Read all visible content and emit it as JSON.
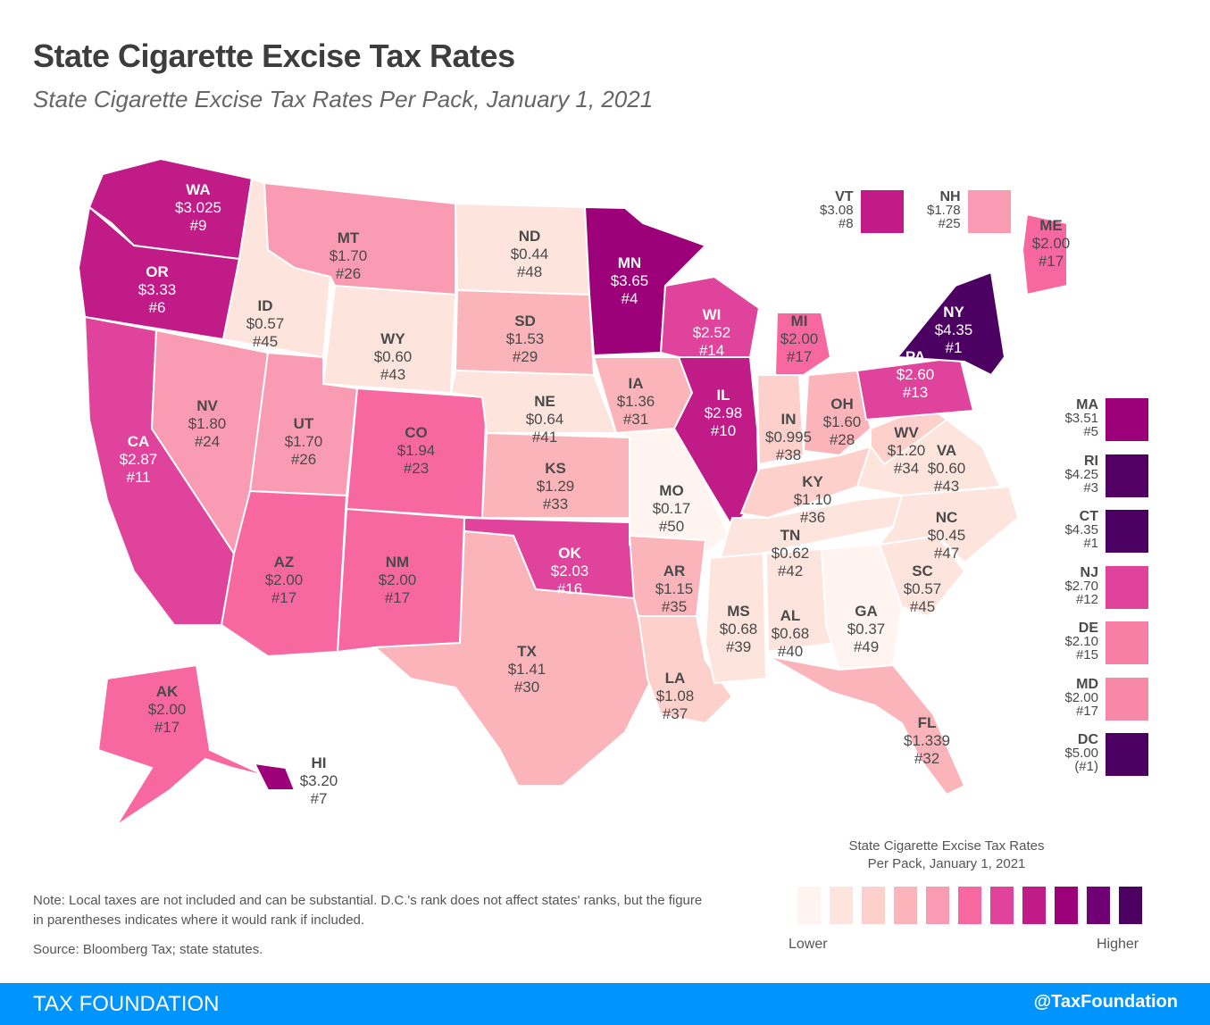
{
  "header": {
    "title": "State Cigarette Excise Tax Rates",
    "subtitle": "State Cigarette Excise Tax Rates Per Pack, January 1, 2021"
  },
  "palette": [
    "#fff4f0",
    "#fde4dd",
    "#fdd0cb",
    "#fbb4b9",
    "#f99bb2",
    "#f768a1",
    "#e0439b",
    "#c11b87",
    "#9c017a",
    "#700174",
    "#4b0062"
  ],
  "states": [
    {
      "abbr": "WA",
      "rate": "$3.025",
      "rank": "#9",
      "bin": 7
    },
    {
      "abbr": "OR",
      "rate": "$3.33",
      "rank": "#6",
      "bin": 7
    },
    {
      "abbr": "CA",
      "rate": "$2.87",
      "rank": "#11",
      "bin": 6
    },
    {
      "abbr": "ID",
      "rate": "$0.57",
      "rank": "#45",
      "bin": 1
    },
    {
      "abbr": "NV",
      "rate": "$1.80",
      "rank": "#24",
      "bin": 4
    },
    {
      "abbr": "MT",
      "rate": "$1.70",
      "rank": "#26",
      "bin": 4
    },
    {
      "abbr": "WY",
      "rate": "$0.60",
      "rank": "#43",
      "bin": 1
    },
    {
      "abbr": "UT",
      "rate": "$1.70",
      "rank": "#26",
      "bin": 4
    },
    {
      "abbr": "AZ",
      "rate": "$2.00",
      "rank": "#17",
      "bin": 5
    },
    {
      "abbr": "CO",
      "rate": "$1.94",
      "rank": "#23",
      "bin": 5
    },
    {
      "abbr": "NM",
      "rate": "$2.00",
      "rank": "#17",
      "bin": 5
    },
    {
      "abbr": "ND",
      "rate": "$0.44",
      "rank": "#48",
      "bin": 1
    },
    {
      "abbr": "SD",
      "rate": "$1.53",
      "rank": "#29",
      "bin": 3
    },
    {
      "abbr": "NE",
      "rate": "$0.64",
      "rank": "#41",
      "bin": 1
    },
    {
      "abbr": "KS",
      "rate": "$1.29",
      "rank": "#33",
      "bin": 3
    },
    {
      "abbr": "OK",
      "rate": "$2.03",
      "rank": "#16",
      "bin": 6
    },
    {
      "abbr": "TX",
      "rate": "$1.41",
      "rank": "#30",
      "bin": 3
    },
    {
      "abbr": "MN",
      "rate": "$3.65",
      "rank": "#4",
      "bin": 8
    },
    {
      "abbr": "IA",
      "rate": "$1.36",
      "rank": "#31",
      "bin": 3
    },
    {
      "abbr": "MO",
      "rate": "$0.17",
      "rank": "#50",
      "bin": 0
    },
    {
      "abbr": "AR",
      "rate": "$1.15",
      "rank": "#35",
      "bin": 3
    },
    {
      "abbr": "LA",
      "rate": "$1.08",
      "rank": "#37",
      "bin": 2
    },
    {
      "abbr": "WI",
      "rate": "$2.52",
      "rank": "#14",
      "bin": 6
    },
    {
      "abbr": "IL",
      "rate": "$2.98",
      "rank": "#10",
      "bin": 7
    },
    {
      "abbr": "MI",
      "rate": "$2.00",
      "rank": "#17",
      "bin": 5
    },
    {
      "abbr": "IN",
      "rate": "$0.995",
      "rank": "#38",
      "bin": 2
    },
    {
      "abbr": "OH",
      "rate": "$1.60",
      "rank": "#28",
      "bin": 3
    },
    {
      "abbr": "KY",
      "rate": "$1.10",
      "rank": "#36",
      "bin": 2
    },
    {
      "abbr": "TN",
      "rate": "$0.62",
      "rank": "#42",
      "bin": 1
    },
    {
      "abbr": "MS",
      "rate": "$0.68",
      "rank": "#39",
      "bin": 1
    },
    {
      "abbr": "AL",
      "rate": "$0.68",
      "rank": "#40",
      "bin": 1
    },
    {
      "abbr": "GA",
      "rate": "$0.37",
      "rank": "#49",
      "bin": 0
    },
    {
      "abbr": "FL",
      "rate": "$1.339",
      "rank": "#32",
      "bin": 3
    },
    {
      "abbr": "SC",
      "rate": "$0.57",
      "rank": "#45",
      "bin": 1
    },
    {
      "abbr": "NC",
      "rate": "$0.45",
      "rank": "#47",
      "bin": 1
    },
    {
      "abbr": "VA",
      "rate": "$0.60",
      "rank": "#43",
      "bin": 1
    },
    {
      "abbr": "WV",
      "rate": "$1.20",
      "rank": "#34",
      "bin": 2
    },
    {
      "abbr": "PA",
      "rate": "$2.60",
      "rank": "#13",
      "bin": 6
    },
    {
      "abbr": "NY",
      "rate": "$4.35",
      "rank": "#1",
      "bin": 10
    },
    {
      "abbr": "ME",
      "rate": "$2.00",
      "rank": "#17",
      "bin": 5
    },
    {
      "abbr": "AK",
      "rate": "$2.00",
      "rank": "#17",
      "bin": 5
    },
    {
      "abbr": "HI",
      "rate": "$3.20",
      "rank": "#7",
      "bin": 8
    }
  ],
  "callouts_top": [
    {
      "abbr": "VT",
      "rate": "$3.08",
      "rank": "#8",
      "color": "#c11b87"
    },
    {
      "abbr": "NH",
      "rate": "$1.78",
      "rank": "#25",
      "color": "#f99bb2"
    }
  ],
  "callouts_side": [
    {
      "abbr": "MA",
      "rate": "$3.51",
      "rank": "#5",
      "color": "#9c017a"
    },
    {
      "abbr": "RI",
      "rate": "$4.25",
      "rank": "#3",
      "color": "#530064"
    },
    {
      "abbr": "CT",
      "rate": "$4.35",
      "rank": "#1",
      "color": "#4b0062"
    },
    {
      "abbr": "NJ",
      "rate": "$2.70",
      "rank": "#12",
      "color": "#e0439b"
    },
    {
      "abbr": "DE",
      "rate": "$2.10",
      "rank": "#15",
      "color": "#f77fa6"
    },
    {
      "abbr": "MD",
      "rate": "$2.00",
      "rank": "#17",
      "color": "#f888a8"
    },
    {
      "abbr": "DC",
      "rate": "$5.00",
      "rank": "(#1)",
      "color": "#4b0062"
    }
  ],
  "legend": {
    "title_line1": "State Cigarette Excise Tax Rates",
    "title_line2": "Per Pack, January 1, 2021",
    "low_label": "Lower",
    "high_label": "Higher"
  },
  "notes": {
    "note": "Note: Local taxes are not included and can be substantial. D.C.'s rank does not affect states' ranks, but the figure in parentheses indicates where it would rank if included.",
    "source": "Source: Bloomberg Tax; state statutes."
  },
  "footer": {
    "brand": "TAX FOUNDATION",
    "handle": "@TaxFoundation"
  }
}
